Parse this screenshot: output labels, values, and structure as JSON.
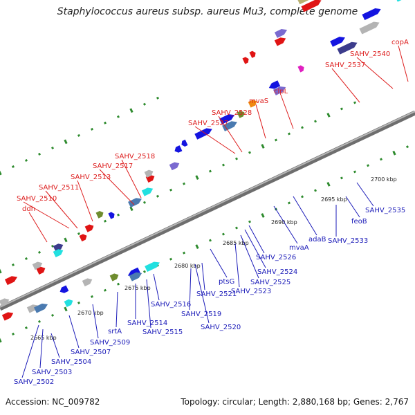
{
  "title": "Staphylococcus aureus subsp. aureus Mu3, complete genome",
  "footer": {
    "accession": "Accession: NC_009782",
    "summary": "Topology: circular; Length: 2,880,168 bp; Genes: 2,767"
  },
  "kbp_ticks": [
    "2665 kbp",
    "2670 kbp",
    "2675 kbp",
    "2680 kbp",
    "2685 kbp",
    "2690 kbp",
    "2695 kbp",
    "2700 kbp"
  ],
  "top_labels": [
    "ddh",
    "SAHV_2510",
    "SAHV_2511",
    "SAHV_2513",
    "SAHV_2517",
    "SAHV_2518",
    "SAHV_2527",
    "SAHV_2528",
    "mvaS",
    "clpL",
    "SAHV_2537",
    "SAHV_2540",
    "copA"
  ],
  "bottom_labels": [
    "SAHV_2502",
    "SAHV_2503",
    "SAHV_2504",
    "SAHV_2507",
    "SAHV_2509",
    "srtA",
    "SAHV_2514",
    "SAHV_2515",
    "SAHV_2516",
    "SAHV_2519",
    "SAHV_2520",
    "SAHV_2521",
    "ptsG",
    "SAHV_2523",
    "SAHV_2525",
    "SAHV_2524",
    "SAHV_2526",
    "mvaA",
    "adaB",
    "SAHV_2533",
    "feoB",
    "SAHV_2535"
  ],
  "colors": {
    "backbone": "#8a8a8a",
    "dot_green": "#2e8b2e",
    "gene_blue": "#1414e0",
    "gene_red": "#e01414",
    "gene_cyan": "#22e0e0",
    "gene_navy": "#3c3c8c",
    "gene_purple": "#7a6ad0",
    "gene_khaki": "#b8b070",
    "gene_olive": "#6e8c2e",
    "gene_orange": "#f08a10",
    "gene_magenta": "#e020c0",
    "gene_steel": "#4a7ab0",
    "gene_gray": "#b4b4b4"
  }
}
